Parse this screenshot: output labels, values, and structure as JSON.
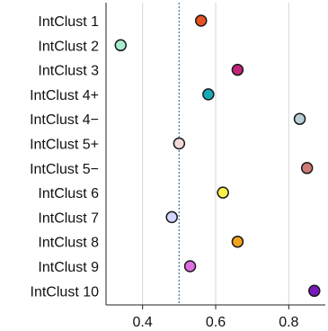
{
  "chart_data": {
    "type": "scatter",
    "orientation": "horizontal",
    "categories": [
      "IntClust 1",
      "IntClust 2",
      "IntClust 3",
      "IntClust 4+",
      "IntClust 4−",
      "IntClust 5+",
      "IntClust 5−",
      "IntClust 6",
      "IntClust 7",
      "IntClust 8",
      "IntClust 9",
      "IntClust 10"
    ],
    "values": [
      0.56,
      0.34,
      0.66,
      0.58,
      0.83,
      0.5,
      0.85,
      0.62,
      0.48,
      0.66,
      0.53,
      0.87
    ],
    "colors": [
      "#e8531d",
      "#a8ecd0",
      "#c0257a",
      "#18a9b6",
      "#b8d0d4",
      "#f2d8d8",
      "#d07a76",
      "#fbf14a",
      "#d4d6fb",
      "#f0a41c",
      "#e06ee0",
      "#7a18c0"
    ],
    "xticks": [
      0.4,
      0.6,
      0.8
    ],
    "xlim": [
      0.3,
      0.9
    ],
    "reference_line": 0.5,
    "grid": "vertical",
    "xlabel": "",
    "ylabel": "",
    "title": ""
  }
}
